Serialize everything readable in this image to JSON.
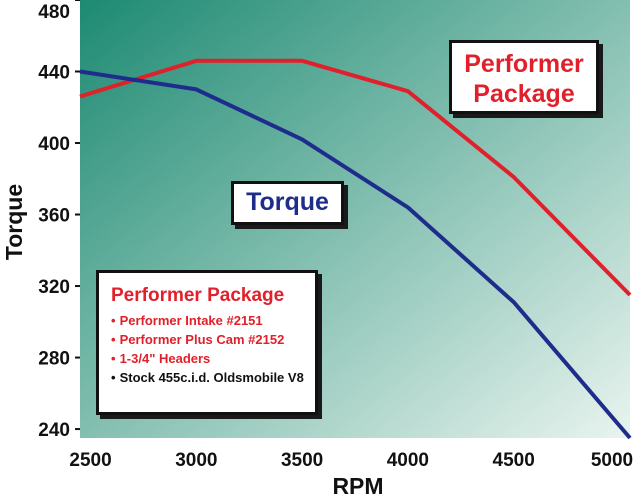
{
  "chart_data": {
    "type": "line",
    "xlabel": "RPM",
    "ylabel": "Torque",
    "xlim": [
      2450,
      5050
    ],
    "ylim": [
      235,
      480
    ],
    "x_ticks": [
      2500,
      3000,
      3500,
      4000,
      4500,
      5000
    ],
    "y_ticks": [
      240,
      280,
      320,
      360,
      400,
      440,
      480
    ],
    "grid": false,
    "background_gradient": [
      "#1d8a72",
      "#e9f4ef"
    ],
    "series": [
      {
        "name": "Performer Package",
        "color": "#e0202a",
        "x": [
          2450,
          3000,
          3500,
          4000,
          4500,
          5050
        ],
        "y": [
          426,
          446,
          446,
          429,
          381,
          315
        ]
      },
      {
        "name": "Torque",
        "color": "#1e2c8c",
        "x": [
          2450,
          3000,
          3500,
          4000,
          4500,
          5050
        ],
        "y": [
          440,
          430,
          402,
          364,
          311,
          235
        ]
      }
    ]
  },
  "annotations": {
    "performer_line1": "Performer",
    "performer_line2": "Package",
    "torque": "Torque"
  },
  "legend": {
    "title": "Performer Package",
    "items": [
      {
        "text": "Performer Intake #2151",
        "color": "red"
      },
      {
        "text": "Performer Plus Cam #2152",
        "color": "red"
      },
      {
        "text": "1-3/4\" Headers",
        "color": "red"
      },
      {
        "text": "Stock 455c.i.d. Oldsmobile V8",
        "color": "black"
      }
    ]
  }
}
